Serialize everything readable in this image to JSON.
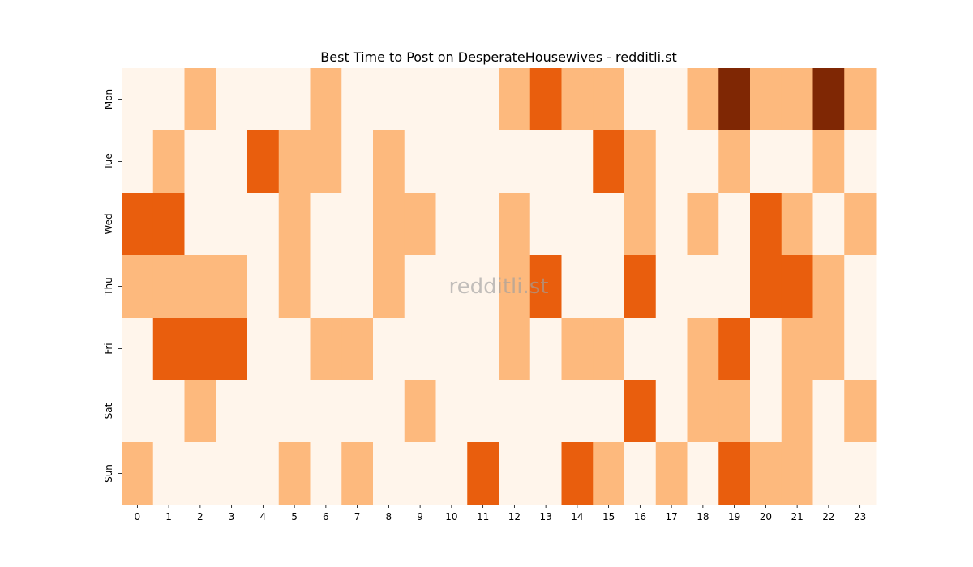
{
  "chart_data": {
    "type": "heatmap",
    "title": "Best Time to Post on DesperateHousewives - redditli.st",
    "watermark": "redditli.st",
    "x_categories": [
      "0",
      "1",
      "2",
      "3",
      "4",
      "5",
      "6",
      "7",
      "8",
      "9",
      "10",
      "11",
      "12",
      "13",
      "14",
      "15",
      "16",
      "17",
      "18",
      "19",
      "20",
      "21",
      "22",
      "23"
    ],
    "y_categories": [
      "Mon",
      "Tue",
      "Wed",
      "Thu",
      "Fri",
      "Sat",
      "Sun"
    ],
    "values": [
      [
        0,
        0,
        1,
        0,
        0,
        0,
        1,
        0,
        0,
        0,
        0,
        0,
        1,
        2,
        1,
        1,
        0,
        0,
        1,
        3,
        1,
        1,
        3,
        1
      ],
      [
        0,
        1,
        0,
        0,
        2,
        1,
        1,
        0,
        1,
        0,
        0,
        0,
        0,
        0,
        0,
        2,
        1,
        0,
        0,
        1,
        0,
        0,
        1,
        0
      ],
      [
        2,
        2,
        0,
        0,
        0,
        1,
        0,
        0,
        1,
        1,
        0,
        0,
        1,
        0,
        0,
        0,
        1,
        0,
        1,
        0,
        2,
        1,
        0,
        1
      ],
      [
        1,
        1,
        1,
        1,
        0,
        1,
        0,
        0,
        1,
        0,
        0,
        0,
        1,
        2,
        0,
        0,
        2,
        0,
        0,
        0,
        2,
        2,
        1,
        0
      ],
      [
        0,
        2,
        2,
        2,
        0,
        0,
        1,
        1,
        0,
        0,
        0,
        0,
        1,
        0,
        1,
        1,
        0,
        0,
        1,
        2,
        0,
        1,
        1,
        0
      ],
      [
        0,
        0,
        1,
        0,
        0,
        0,
        0,
        0,
        0,
        1,
        0,
        0,
        0,
        0,
        0,
        0,
        2,
        0,
        1,
        1,
        0,
        1,
        0,
        1
      ],
      [
        1,
        0,
        0,
        0,
        0,
        1,
        0,
        1,
        0,
        0,
        0,
        2,
        0,
        0,
        2,
        1,
        0,
        1,
        0,
        2,
        1,
        1,
        0,
        0
      ]
    ],
    "colors": [
      "#fff5eb",
      "#fdb97d",
      "#e95e0d",
      "#7f2704"
    ],
    "colormap": "Oranges",
    "colorbar": false
  }
}
